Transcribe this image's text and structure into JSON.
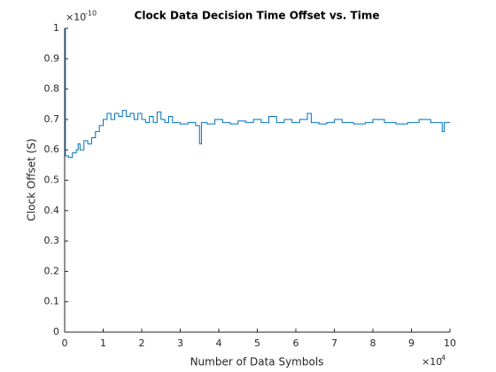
{
  "chart_data": {
    "type": "line",
    "title": "Clock Data Decision Time Offset vs. Time",
    "xlabel": "Number of Data Symbols",
    "ylabel": "Clock Offset (S)",
    "x_exponent_base": "×10",
    "x_exponent_power": "4",
    "y_exponent_base": "×10",
    "y_exponent_power": "-10",
    "xlim": [
      0,
      10
    ],
    "ylim": [
      0,
      1
    ],
    "xticks": [
      0,
      1,
      2,
      3,
      4,
      5,
      6,
      7,
      8,
      9,
      10
    ],
    "yticks": [
      0,
      0.1,
      0.2,
      0.3,
      0.4,
      0.5,
      0.6,
      0.7,
      0.8,
      0.9,
      1
    ],
    "stairs": true,
    "series": [
      {
        "color": "#0072bd",
        "x": [
          0,
          0.02,
          0.1,
          0.2,
          0.3,
          0.35,
          0.4,
          0.5,
          0.6,
          0.7,
          0.8,
          0.9,
          1.0,
          1.1,
          1.2,
          1.3,
          1.4,
          1.5,
          1.6,
          1.7,
          1.8,
          1.9,
          2.0,
          2.1,
          2.2,
          2.3,
          2.4,
          2.5,
          2.6,
          2.7,
          2.8,
          3.0,
          3.2,
          3.4,
          3.5,
          3.55,
          3.7,
          3.9,
          4.1,
          4.3,
          4.5,
          4.7,
          4.9,
          5.1,
          5.3,
          5.5,
          5.7,
          5.9,
          6.1,
          6.3,
          6.4,
          6.6,
          6.8,
          7.0,
          7.2,
          7.5,
          7.8,
          8.0,
          8.3,
          8.6,
          8.9,
          9.2,
          9.5,
          9.8,
          9.85,
          10
        ],
        "values": [
          1.0,
          0.58,
          0.575,
          0.59,
          0.6,
          0.62,
          0.6,
          0.63,
          0.62,
          0.64,
          0.66,
          0.68,
          0.7,
          0.72,
          0.7,
          0.72,
          0.71,
          0.73,
          0.71,
          0.72,
          0.7,
          0.72,
          0.7,
          0.69,
          0.71,
          0.69,
          0.725,
          0.7,
          0.69,
          0.71,
          0.69,
          0.685,
          0.69,
          0.68,
          0.62,
          0.69,
          0.685,
          0.7,
          0.69,
          0.685,
          0.695,
          0.69,
          0.7,
          0.69,
          0.71,
          0.69,
          0.7,
          0.69,
          0.7,
          0.72,
          0.69,
          0.685,
          0.69,
          0.7,
          0.69,
          0.685,
          0.69,
          0.7,
          0.69,
          0.685,
          0.69,
          0.7,
          0.69,
          0.66,
          0.69,
          0.69
        ]
      }
    ]
  }
}
